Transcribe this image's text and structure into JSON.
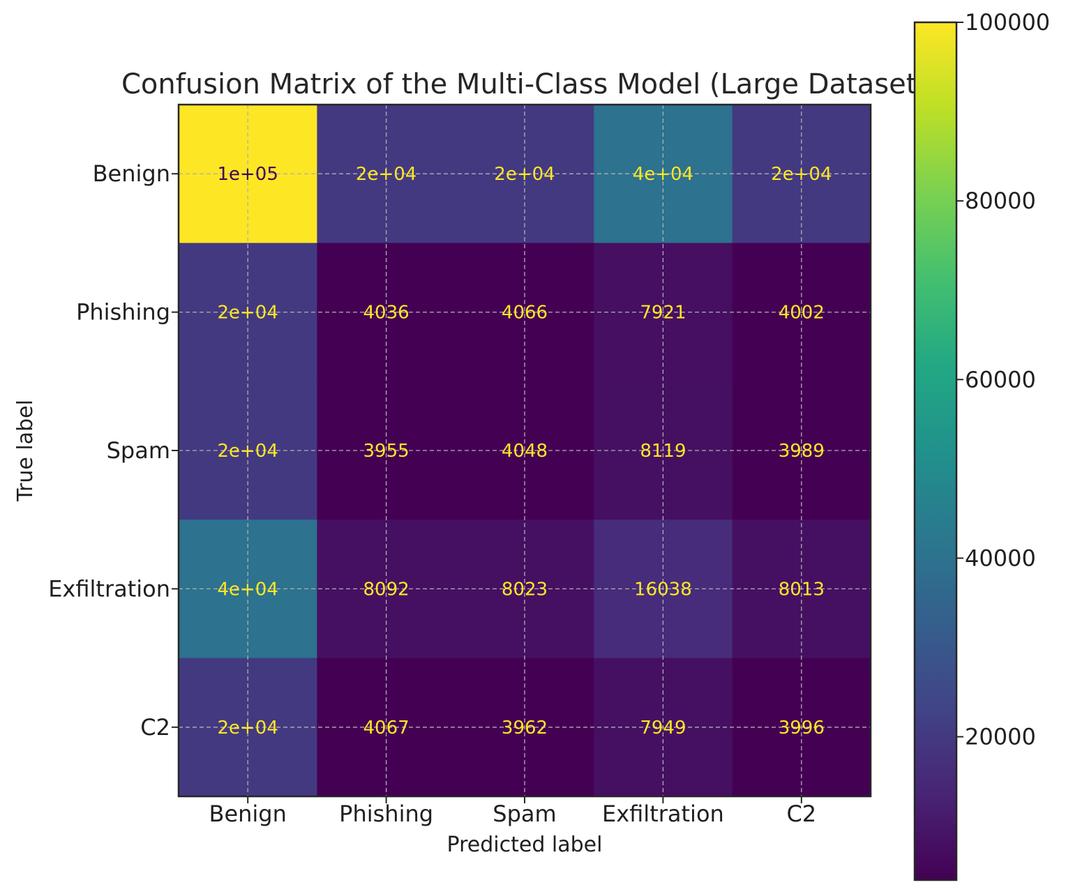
{
  "chart_data": {
    "type": "heatmap",
    "title": "Confusion Matrix of the Multi-Class Model (Large Dataset)",
    "xlabel": "Predicted label",
    "ylabel": "True label",
    "x_categories": [
      "Benign",
      "Phishing",
      "Spam",
      "Exfiltration",
      "C2"
    ],
    "y_categories": [
      "Benign",
      "Phishing",
      "Spam",
      "Exfiltration",
      "C2"
    ],
    "values": [
      [
        100000,
        20000,
        20000,
        40000,
        20000
      ],
      [
        20000,
        4036,
        4066,
        7921,
        4002
      ],
      [
        20000,
        3955,
        4048,
        8119,
        3989
      ],
      [
        40000,
        8092,
        8023,
        16038,
        8013
      ],
      [
        20000,
        4067,
        3962,
        7949,
        3996
      ]
    ],
    "cell_labels": [
      [
        "1e+05",
        "2e+04",
        "2e+04",
        "4e+04",
        "2e+04"
      ],
      [
        "2e+04",
        "4036",
        "4066",
        "7921",
        "4002"
      ],
      [
        "2e+04",
        "3955",
        "4048",
        "8119",
        "3989"
      ],
      [
        "4e+04",
        "8092",
        "8023",
        "16038",
        "8013"
      ],
      [
        "2e+04",
        "4067",
        "3962",
        "7949",
        "3996"
      ]
    ],
    "colormap": "viridis",
    "colorbar": {
      "range": [
        3955,
        100000
      ],
      "ticks": [
        20000,
        40000,
        60000,
        80000,
        100000
      ],
      "tick_labels": [
        "20000",
        "40000",
        "60000",
        "80000",
        "100000"
      ]
    },
    "grid": true,
    "text_colors": {
      "dark": "#440154",
      "light": "#fde725"
    }
  }
}
